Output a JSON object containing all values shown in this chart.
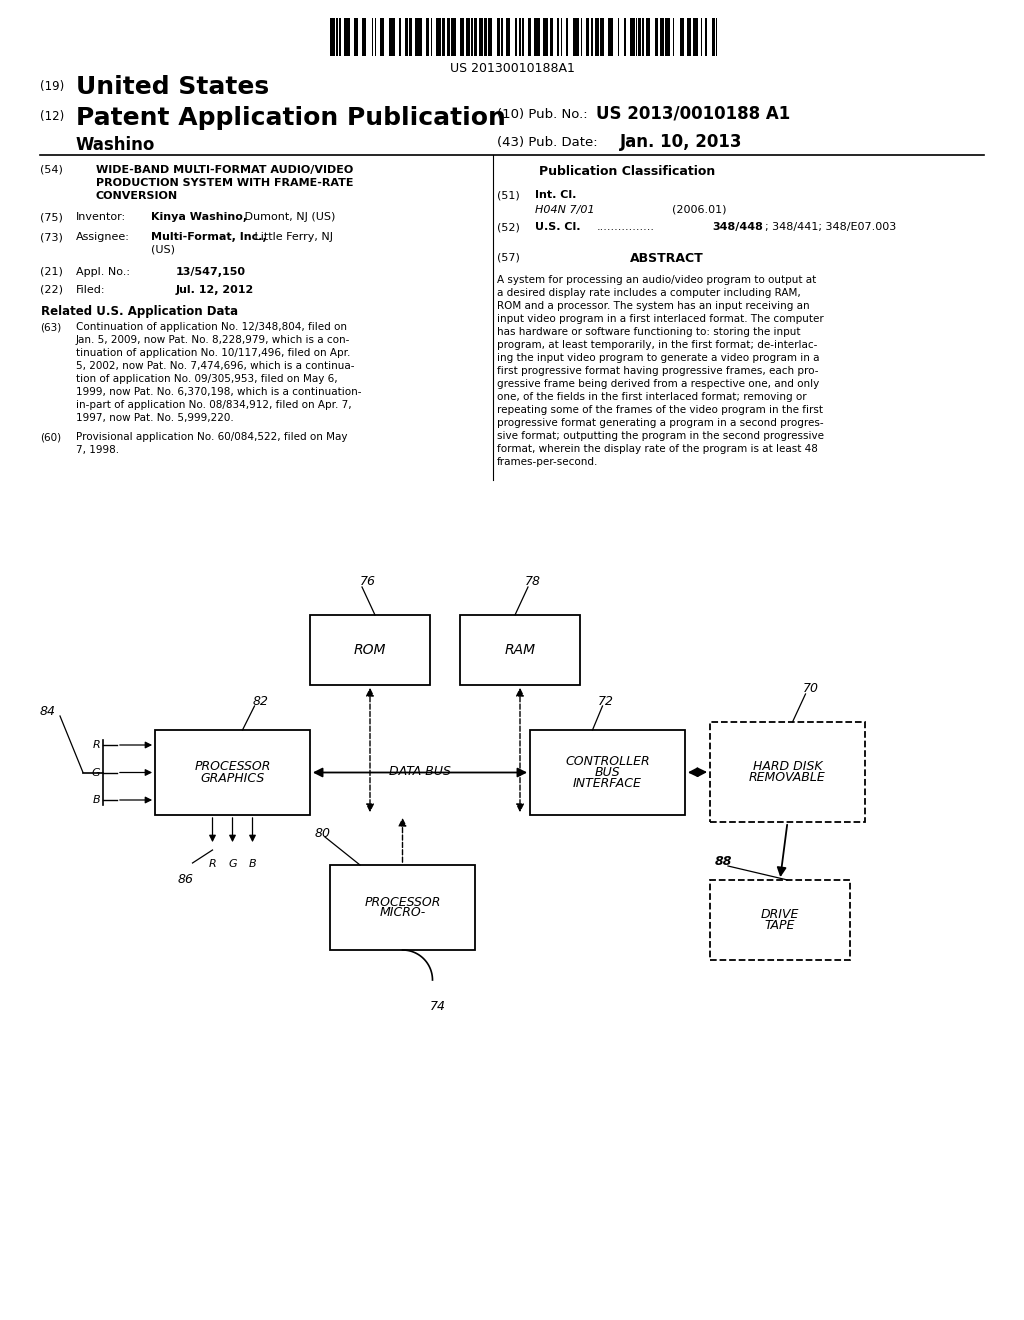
{
  "bg_color": "#ffffff",
  "barcode_text": "US 20130010188A1",
  "header": {
    "number19": "(19)",
    "united_states": "United States",
    "number12": "(12)",
    "patent_app_pub": "Patent Application Publication",
    "inventor_name": "Washino",
    "pub_no_label": "(10) Pub. No.:",
    "pub_no_value": "US 2013/0010188 A1",
    "pub_date_label": "(43) Pub. Date:",
    "pub_date_value": "Jan. 10, 2013"
  },
  "left_col": {
    "num54": "(54)",
    "title_line1": "WIDE-BAND MULTI-FORMAT AUDIO/VIDEO",
    "title_line2": "PRODUCTION SYSTEM WITH FRAME-RATE",
    "title_line3": "CONVERSION",
    "num75": "(75)",
    "inventor_label": "Inventor:",
    "inventor_value": "Kinya Washino,",
    "inventor_loc": " Dumont, NJ (US)",
    "num73": "(73)",
    "assignee_label": "Assignee:",
    "assignee_value": "Multi-Format, Inc.,",
    "assignee_loc": " Little Ferry, NJ",
    "assignee_loc2": "(US)",
    "num21": "(21)",
    "appl_label": "Appl. No.:",
    "appl_value": "13/547,150",
    "num22": "(22)",
    "filed_label": "Filed:",
    "filed_value": "Jul. 12, 2012",
    "related_title": "Related U.S. Application Data",
    "num63": "(63)",
    "cont_text": "Continuation of application No. 12/348,804, filed on\nJan. 5, 2009, now Pat. No. 8,228,979, which is a con-\ntinuation of application No. 10/117,496, filed on Apr.\n5, 2002, now Pat. No. 7,474,696, which is a continua-\ntion of application No. 09/305,953, filed on May 6,\n1999, now Pat. No. 6,370,198, which is a continuation-\nin-part of application No. 08/834,912, filed on Apr. 7,\n1997, now Pat. No. 5,999,220.",
    "num60": "(60)",
    "prov_text": "Provisional application No. 60/084,522, filed on May\n7, 1998."
  },
  "right_col": {
    "pub_class_title": "Publication Classification",
    "num51": "(51)",
    "int_cl_label": "Int. Cl.",
    "int_cl_value": "H04N 7/01",
    "int_cl_year": "(2006.01)",
    "num52": "(52)",
    "us_cl_label": "U.S. Cl.",
    "us_cl_dots": "................",
    "us_cl_value": "348/448",
    "us_cl_extra": "; 348/441; 348/E07.003",
    "num57": "(57)",
    "abstract_title": "ABSTRACT",
    "abstract_text": "A system for processing an audio/video program to output at\na desired display rate includes a computer including RAM,\nROM and a processor. The system has an input receiving an\ninput video program in a first interlaced format. The computer\nhas hardware or software functioning to: storing the input\nprogram, at least temporarily, in the first format; de-interlac-\ning the input video program to generate a video program in a\nfirst progressive format having progressive frames, each pro-\ngressive frame being derived from a respective one, and only\none, of the fields in the first interlaced format; removing or\nrepeating some of the frames of the video program in the first\nprogressive format generating a program in a second progres-\nsive format; outputting the program in the second progressive\nformat, wherein the display rate of the program is at least 48\nframes-per-second."
  }
}
